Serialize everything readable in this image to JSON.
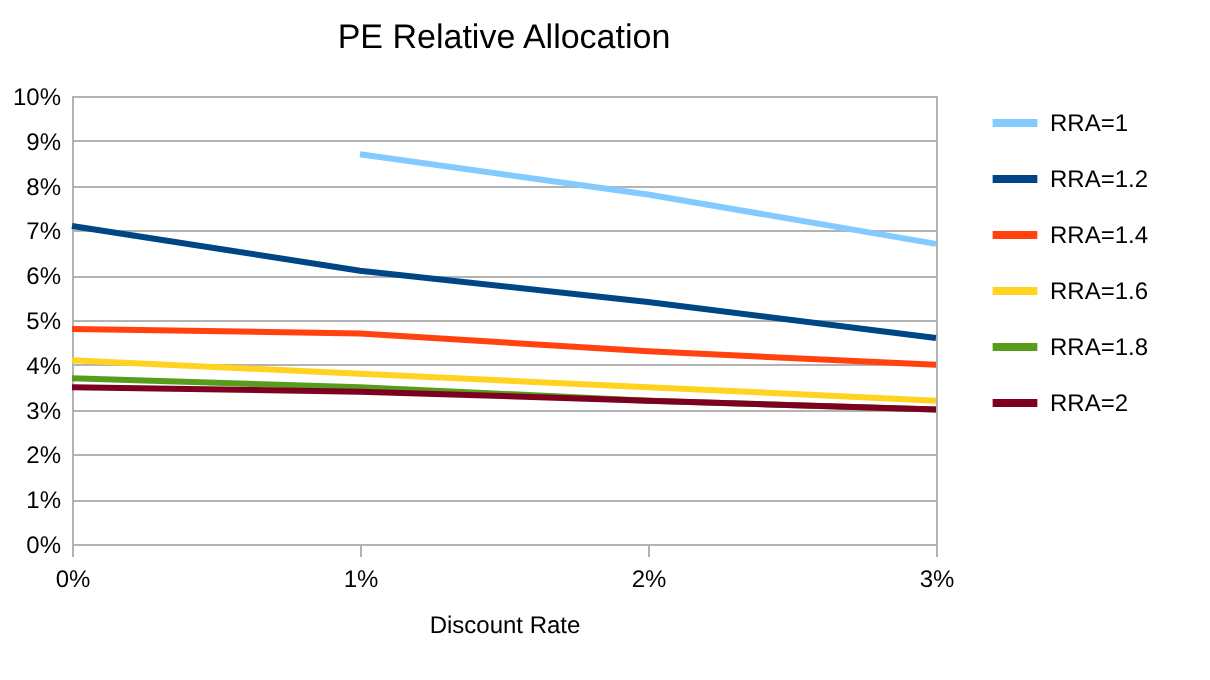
{
  "chart_data": {
    "type": "line",
    "title": "PE Relative Allocation",
    "xlabel": "Discount Rate",
    "x": [
      0,
      1,
      2,
      3
    ],
    "series": [
      {
        "name": "RRA=1",
        "color": "#83caff",
        "values": [
          null,
          8.7,
          7.8,
          6.7
        ]
      },
      {
        "name": "RRA=1.2",
        "color": "#004586",
        "values": [
          7.1,
          6.1,
          5.4,
          4.6
        ]
      },
      {
        "name": "RRA=1.4",
        "color": "#ff420e",
        "values": [
          4.8,
          4.7,
          4.3,
          4.0
        ]
      },
      {
        "name": "RRA=1.6",
        "color": "#ffd320",
        "values": [
          4.1,
          3.8,
          3.5,
          3.2
        ]
      },
      {
        "name": "RRA=1.8",
        "color": "#579d1c",
        "values": [
          3.7,
          3.5,
          3.2,
          3.0
        ]
      },
      {
        "name": "RRA=2",
        "color": "#7e0021",
        "values": [
          3.5,
          3.4,
          3.2,
          3.0
        ]
      }
    ],
    "xlim": [
      0,
      3
    ],
    "xticks": [
      {
        "value": 0,
        "label": "0%"
      },
      {
        "value": 1,
        "label": "1%"
      },
      {
        "value": 2,
        "label": "2%"
      },
      {
        "value": 3,
        "label": "3%"
      }
    ],
    "ylim": [
      0,
      10
    ],
    "yticks": [
      {
        "value": 0,
        "label": "0%"
      },
      {
        "value": 1,
        "label": "1%"
      },
      {
        "value": 2,
        "label": "2%"
      },
      {
        "value": 3,
        "label": "3%"
      },
      {
        "value": 4,
        "label": "4%"
      },
      {
        "value": 5,
        "label": "5%"
      },
      {
        "value": 6,
        "label": "6%"
      },
      {
        "value": 7,
        "label": "7%"
      },
      {
        "value": 8,
        "label": "8%"
      },
      {
        "value": 9,
        "label": "9%"
      },
      {
        "value": 10,
        "label": "10%"
      }
    ],
    "grid": "y",
    "legend": "right",
    "marker": "none",
    "line_style": "solid"
  }
}
